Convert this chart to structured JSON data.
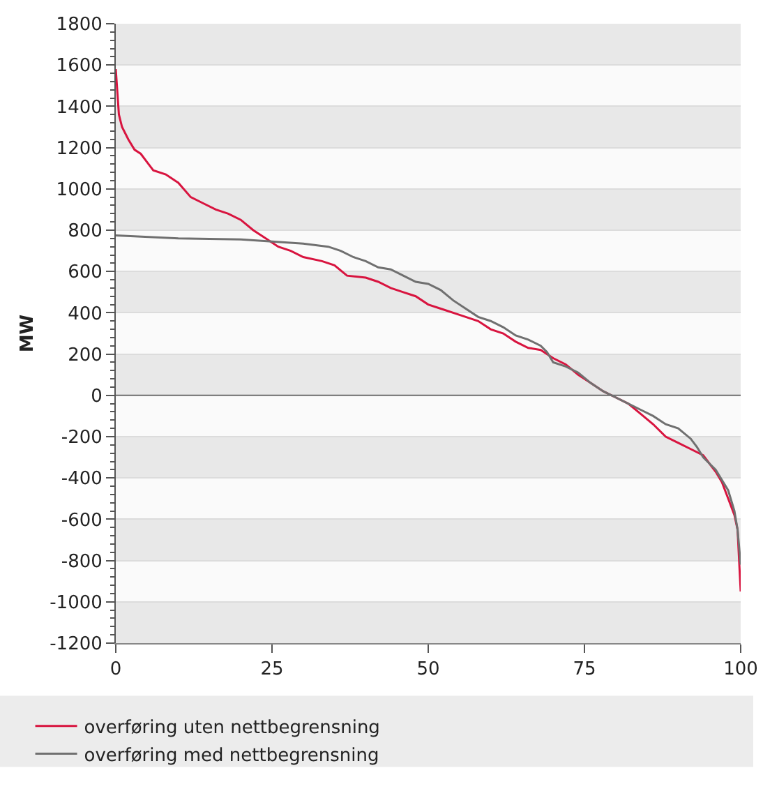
{
  "chart_data": {
    "type": "line",
    "ylabel": "MW",
    "xlim": [
      0,
      100
    ],
    "xticks": [
      0,
      25,
      50,
      75,
      100
    ],
    "ylim": [
      -1200,
      1800
    ],
    "yticks": [
      -1200,
      -1000,
      -800,
      -600,
      -400,
      -200,
      0,
      200,
      400,
      600,
      800,
      1000,
      1200,
      1400,
      1600,
      1800
    ],
    "grid": "y",
    "legend": "bottom",
    "marker": "none",
    "line_style": "solid",
    "ref_lines": [
      {
        "axis": "y",
        "value": 0,
        "color": "#707070"
      }
    ],
    "series": [
      {
        "name": "overføring uten nettbegrensning",
        "color": "#d8143f",
        "x": [
          0,
          0.5,
          1,
          2,
          3,
          4,
          5,
          6,
          8,
          10,
          12,
          14,
          16,
          18,
          20,
          22,
          24,
          26,
          28,
          30,
          33,
          35,
          37,
          40,
          42,
          44,
          46,
          48,
          50,
          52,
          55,
          58,
          60,
          62,
          64,
          66,
          68,
          70,
          72,
          74,
          76,
          78,
          80,
          82,
          84,
          86,
          88,
          90,
          92,
          94,
          96,
          97,
          98,
          99,
          99.5,
          100
        ],
        "values": [
          1580,
          1360,
          1300,
          1240,
          1190,
          1170,
          1130,
          1090,
          1070,
          1030,
          960,
          930,
          900,
          880,
          850,
          800,
          760,
          720,
          700,
          670,
          650,
          630,
          580,
          570,
          550,
          520,
          500,
          480,
          440,
          420,
          390,
          360,
          320,
          300,
          260,
          230,
          220,
          180,
          150,
          100,
          60,
          20,
          -10,
          -40,
          -90,
          -140,
          -200,
          -230,
          -260,
          -290,
          -370,
          -420,
          -500,
          -580,
          -650,
          -950
        ]
      },
      {
        "name": "overføring med nettbegrensning",
        "color": "#707070",
        "x": [
          0,
          10,
          20,
          25,
          30,
          34,
          36,
          38,
          40,
          42,
          44,
          46,
          48,
          50,
          52,
          54,
          56,
          58,
          60,
          62,
          64,
          66,
          68,
          69,
          70,
          72,
          74,
          76,
          78,
          80,
          82,
          84,
          86,
          88,
          90,
          92,
          93,
          94,
          96,
          98,
          99,
          99.5,
          100
        ],
        "values": [
          775,
          760,
          755,
          745,
          735,
          720,
          700,
          670,
          650,
          620,
          610,
          580,
          550,
          540,
          510,
          460,
          420,
          380,
          360,
          330,
          290,
          270,
          240,
          210,
          160,
          140,
          110,
          60,
          20,
          -10,
          -40,
          -70,
          -100,
          -140,
          -160,
          -210,
          -250,
          -300,
          -360,
          -460,
          -560,
          -650,
          -820
        ]
      }
    ]
  }
}
